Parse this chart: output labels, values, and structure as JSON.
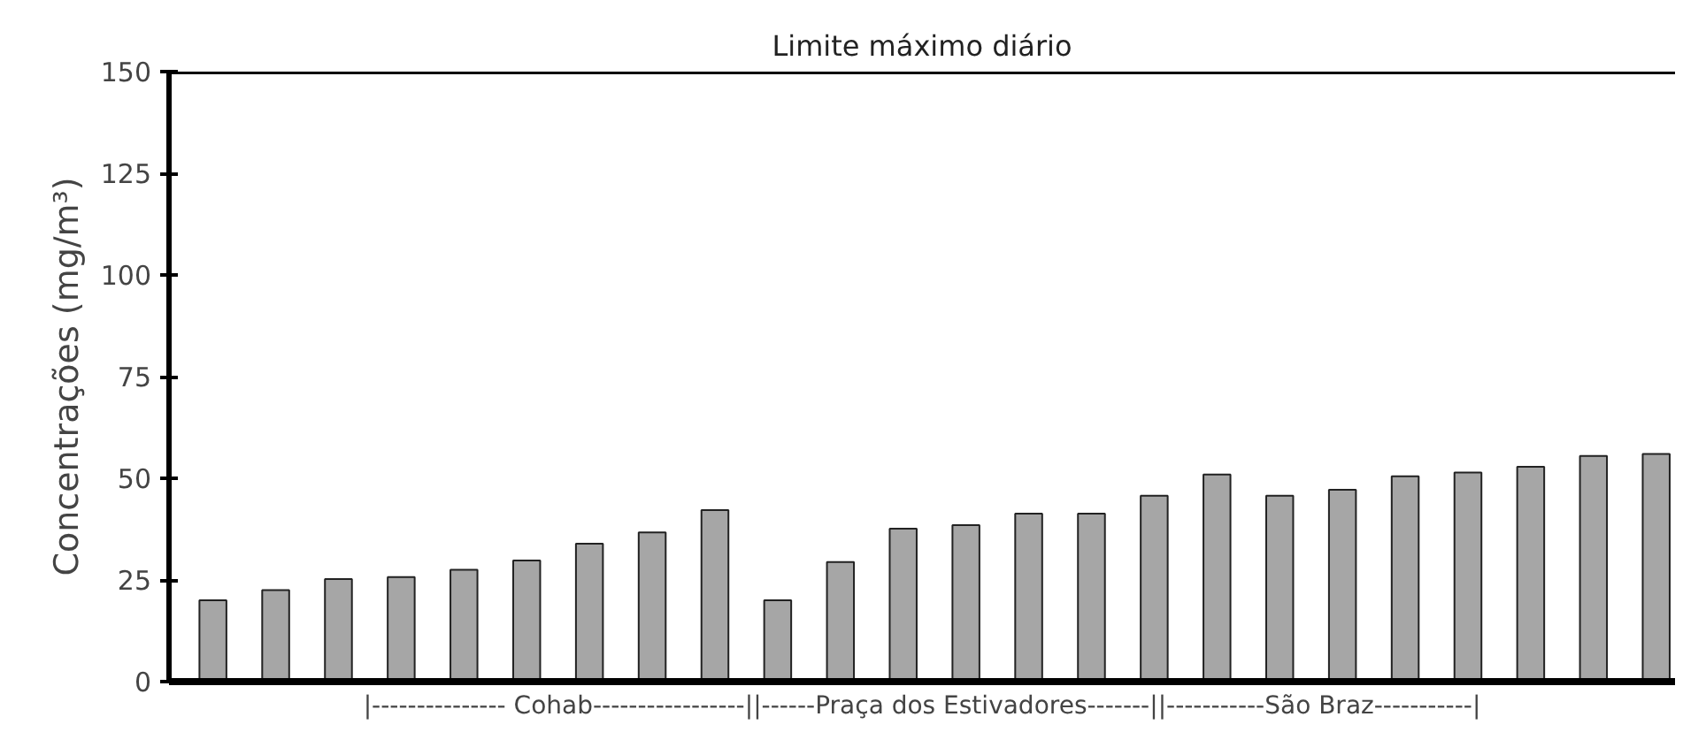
{
  "chart_data": {
    "type": "bar",
    "categories": [
      null,
      null,
      null,
      null,
      null,
      null,
      null,
      null,
      null,
      null,
      null,
      null,
      null,
      null,
      null,
      null,
      null,
      null,
      null,
      null,
      null,
      null,
      null,
      null
    ],
    "values": [
      20.0,
      22.5,
      25.2,
      25.7,
      27.5,
      29.8,
      33.9,
      36.7,
      42.2,
      20.0,
      29.4,
      37.6,
      38.5,
      41.3,
      41.3,
      45.7,
      50.9,
      45.7,
      47.2,
      50.5,
      51.4,
      52.8,
      55.5,
      56.0
    ],
    "color": "#a6a6a6",
    "xlabel": "|--------------- Cohab-----------------||------Praça dos Estivadores-------||-----------São Braz-----------|",
    "ylabel": "Concentrações (mg/m³)",
    "ylim": [
      0,
      150
    ],
    "yticks": [
      0,
      25,
      50,
      75,
      100,
      125,
      150
    ],
    "ref_lines": [
      {
        "axis": "y",
        "value": 150,
        "label": "Limite máximo diário",
        "color": "#000000"
      }
    ],
    "grid": false
  }
}
